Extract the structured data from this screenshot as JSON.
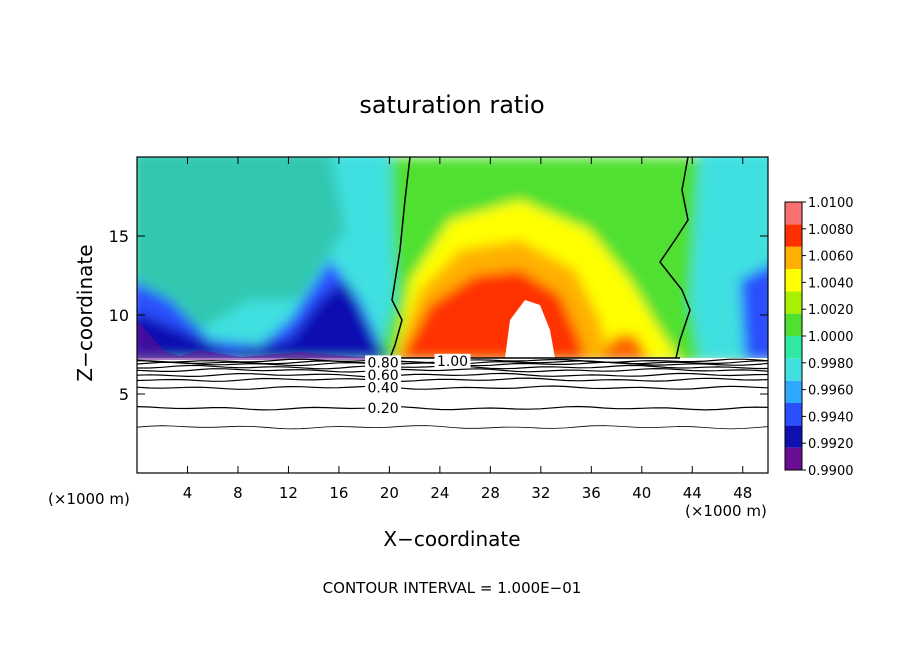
{
  "chart_data": {
    "type": "heatmap",
    "title": "saturation ratio",
    "xlabel": "X−coordinate",
    "ylabel": "Z−coordinate",
    "x_unit_left": "(×1000 m)",
    "x_unit_right": "(×1000 m)",
    "footer": "CONTOUR INTERVAL = 1.000E−01",
    "xlim": [
      0,
      50
    ],
    "ylim": [
      0,
      20
    ],
    "x_ticks": [
      4,
      8,
      12,
      16,
      20,
      24,
      28,
      32,
      36,
      40,
      44,
      48
    ],
    "y_ticks": [
      5,
      10,
      15
    ],
    "colorbar": {
      "min": 0.99,
      "max": 1.01,
      "tick_values": [
        0.99,
        0.992,
        0.994,
        0.996,
        0.998,
        1.0,
        1.002,
        1.004,
        1.006,
        1.008,
        1.01
      ],
      "tick_labels": [
        "0.9900",
        "0.9920",
        "0.9940",
        "0.9960",
        "0.9980",
        "1.0000",
        "1.0020",
        "1.0040",
        "1.0060",
        "1.0080",
        "1.0100"
      ],
      "colors": [
        "#6a0d93",
        "#1010b0",
        "#2a50ff",
        "#30a8ff",
        "#40e0e0",
        "#30e8a0",
        "#50e030",
        "#a8f000",
        "#ffff00",
        "#ffb000",
        "#ff3000",
        "#f87070"
      ]
    },
    "contour_labels": [
      {
        "text": "0.80",
        "x": 19.5,
        "y": 7.0
      },
      {
        "text": "0.60",
        "x": 19.5,
        "y": 6.2
      },
      {
        "text": "0.40",
        "x": 19.5,
        "y": 5.4
      },
      {
        "text": "0.20",
        "x": 19.5,
        "y": 4.1
      },
      {
        "text": "1.00",
        "x": 25.0,
        "y": 7.1
      }
    ],
    "contour_lines_y": [
      2.9,
      4.1,
      5.4,
      5.9,
      6.2,
      6.5,
      6.7,
      6.9,
      7.0,
      7.1
    ],
    "saturated_boundaries_x": [
      [
        20.0,
        19.5,
        21.0,
        20.5,
        21.0,
        20.3,
        20.8
      ],
      [
        43.5,
        43.0,
        44.0,
        43.0,
        43.5,
        43.0,
        44.0
      ]
    ]
  }
}
